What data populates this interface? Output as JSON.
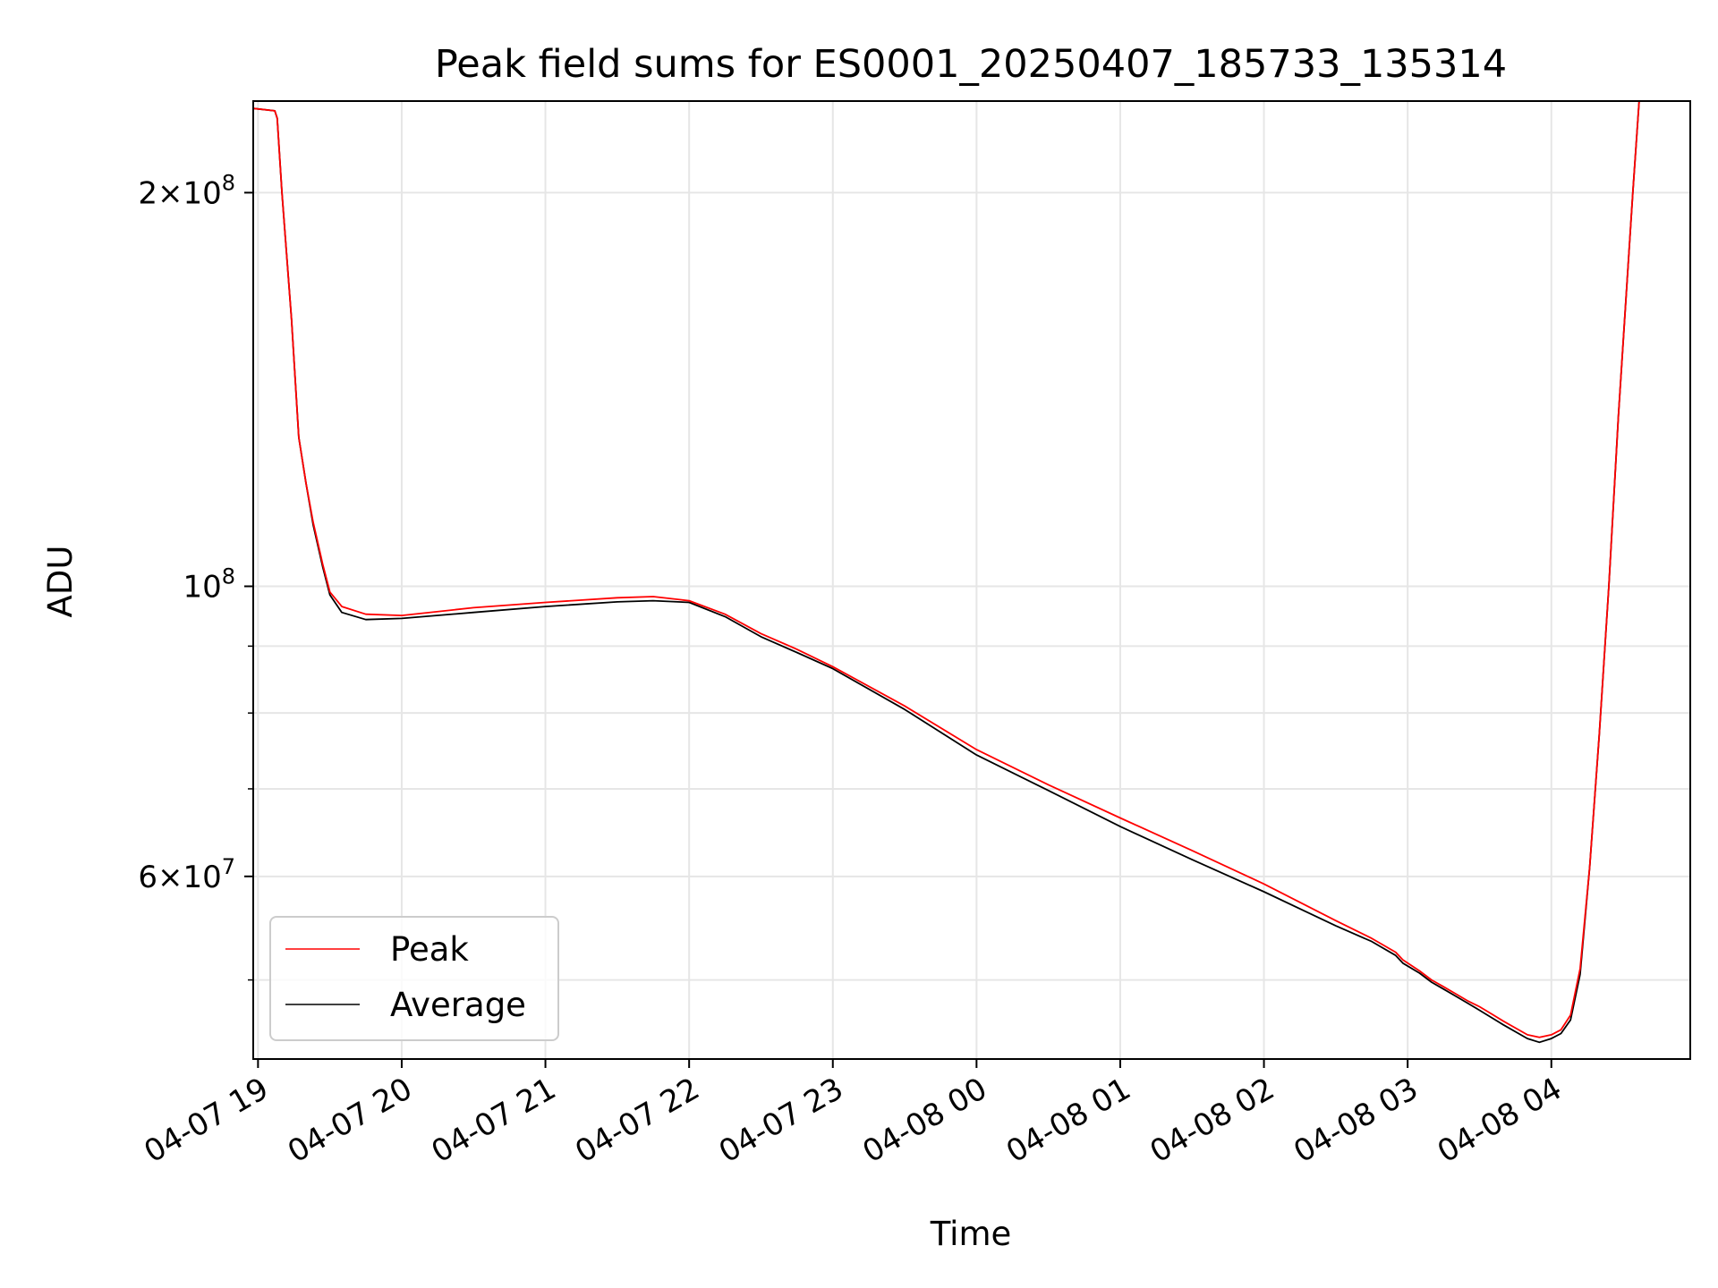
{
  "chart_data": {
    "type": "line",
    "title": "Peak field sums for ES0001_20250407_185733_135314",
    "xlabel": "Time",
    "ylabel": "ADU",
    "x_scale": "time",
    "y_scale": "log",
    "xlim": [
      "2025-04-07 18:58",
      "2025-04-08 04:58"
    ],
    "ylim": [
      43500000,
      235000000
    ],
    "x_ticks": [
      {
        "value": "2025-04-07 19:00",
        "label": "04-07 19"
      },
      {
        "value": "2025-04-07 20:00",
        "label": "04-07 20"
      },
      {
        "value": "2025-04-07 21:00",
        "label": "04-07 21"
      },
      {
        "value": "2025-04-07 22:00",
        "label": "04-07 22"
      },
      {
        "value": "2025-04-07 23:00",
        "label": "04-07 23"
      },
      {
        "value": "2025-04-08 00:00",
        "label": "04-08 00"
      },
      {
        "value": "2025-04-08 01:00",
        "label": "04-08 01"
      },
      {
        "value": "2025-04-08 02:00",
        "label": "04-08 02"
      },
      {
        "value": "2025-04-08 03:00",
        "label": "04-08 03"
      },
      {
        "value": "2025-04-08 04:00",
        "label": "04-08 04"
      }
    ],
    "y_major_ticks": [
      {
        "value": 100000000,
        "base": "10",
        "exp": "8",
        "coef": ""
      },
      {
        "value": 60000000,
        "base": "10",
        "exp": "7",
        "coef": "6"
      },
      {
        "value": 200000000,
        "base": "10",
        "exp": "8",
        "coef": "2"
      }
    ],
    "y_minor_ticks": [
      50000000,
      70000000,
      80000000,
      90000000
    ],
    "grid": true,
    "legend_position": "lower-left",
    "series": [
      {
        "name": "Peak",
        "color": "#ff0000",
        "x": [
          "2025-04-07 18:58",
          "2025-04-07 19:07",
          "2025-04-07 19:08",
          "2025-04-07 19:10",
          "2025-04-07 19:14",
          "2025-04-07 19:17",
          "2025-04-07 19:20",
          "2025-04-07 19:23",
          "2025-04-07 19:27",
          "2025-04-07 19:30",
          "2025-04-07 19:35",
          "2025-04-07 19:45",
          "2025-04-07 20:00",
          "2025-04-07 20:30",
          "2025-04-07 21:00",
          "2025-04-07 21:30",
          "2025-04-07 21:45",
          "2025-04-07 22:00",
          "2025-04-07 22:15",
          "2025-04-07 22:30",
          "2025-04-07 22:45",
          "2025-04-07 23:00",
          "2025-04-07 23:30",
          "2025-04-08 00:00",
          "2025-04-08 00:30",
          "2025-04-08 01:00",
          "2025-04-08 01:30",
          "2025-04-08 02:00",
          "2025-04-08 02:30",
          "2025-04-08 02:45",
          "2025-04-08 02:55",
          "2025-04-08 02:58",
          "2025-04-08 03:05",
          "2025-04-08 03:10",
          "2025-04-08 03:15",
          "2025-04-08 03:20",
          "2025-04-08 03:25",
          "2025-04-08 03:30",
          "2025-04-08 03:35",
          "2025-04-08 03:40",
          "2025-04-08 03:50",
          "2025-04-08 03:55",
          "2025-04-08 04:00",
          "2025-04-08 04:04",
          "2025-04-08 04:08",
          "2025-04-08 04:12",
          "2025-04-08 04:16",
          "2025-04-08 04:20",
          "2025-04-08 04:24",
          "2025-04-08 04:28",
          "2025-04-08 04:34",
          "2025-04-08 04:37"
        ],
        "values": [
          232000000,
          231000000,
          228000000,
          200000000,
          160000000,
          130000000,
          120000000,
          112000000,
          104000000,
          99000000,
          96500000,
          95200000,
          95000000,
          96300000,
          97200000,
          98000000,
          98200000,
          97500000,
          95200000,
          92000000,
          89500000,
          86800000,
          81000000,
          75000000,
          70500000,
          66500000,
          62800000,
          59200000,
          55500000,
          53800000,
          52500000,
          51800000,
          50800000,
          50000000,
          49400000,
          48800000,
          48200000,
          47700000,
          47100000,
          46500000,
          45400000,
          45200000,
          45400000,
          45800000,
          47000000,
          51000000,
          61000000,
          77000000,
          100000000,
          135000000,
          200000000,
          240000000
        ]
      },
      {
        "name": "Average",
        "color": "#000000",
        "x": [
          "2025-04-07 18:58",
          "2025-04-07 19:07",
          "2025-04-07 19:08",
          "2025-04-07 19:10",
          "2025-04-07 19:14",
          "2025-04-07 19:17",
          "2025-04-07 19:20",
          "2025-04-07 19:23",
          "2025-04-07 19:27",
          "2025-04-07 19:30",
          "2025-04-07 19:35",
          "2025-04-07 19:45",
          "2025-04-07 20:00",
          "2025-04-07 20:30",
          "2025-04-07 21:00",
          "2025-04-07 21:30",
          "2025-04-07 21:45",
          "2025-04-07 22:00",
          "2025-04-07 22:15",
          "2025-04-07 22:30",
          "2025-04-07 22:45",
          "2025-04-07 23:00",
          "2025-04-07 23:30",
          "2025-04-08 00:00",
          "2025-04-08 00:30",
          "2025-04-08 01:00",
          "2025-04-08 01:30",
          "2025-04-08 02:00",
          "2025-04-08 02:30",
          "2025-04-08 02:45",
          "2025-04-08 02:55",
          "2025-04-08 02:58",
          "2025-04-08 03:05",
          "2025-04-08 03:10",
          "2025-04-08 03:15",
          "2025-04-08 03:20",
          "2025-04-08 03:25",
          "2025-04-08 03:30",
          "2025-04-08 03:35",
          "2025-04-08 03:40",
          "2025-04-08 03:50",
          "2025-04-08 03:55",
          "2025-04-08 04:00",
          "2025-04-08 04:04",
          "2025-04-08 04:08",
          "2025-04-08 04:12",
          "2025-04-08 04:16",
          "2025-04-08 04:20",
          "2025-04-08 04:24",
          "2025-04-08 04:28",
          "2025-04-08 04:34",
          "2025-04-08 04:37"
        ],
        "values": [
          232000000,
          231000000,
          228000000,
          200000000,
          160000000,
          130000000,
          120000000,
          111500000,
          103500000,
          98500000,
          95500000,
          94300000,
          94500000,
          95500000,
          96500000,
          97300000,
          97500000,
          97200000,
          94800000,
          91500000,
          89000000,
          86500000,
          80500000,
          74300000,
          69800000,
          65500000,
          61800000,
          58400000,
          55000000,
          53500000,
          52200000,
          51500000,
          50600000,
          49800000,
          49200000,
          48600000,
          48000000,
          47400000,
          46800000,
          46200000,
          45100000,
          44800000,
          45100000,
          45500000,
          46600000,
          50500000,
          61000000,
          77000000,
          100000000,
          135000000,
          200000000,
          240000000
        ]
      }
    ]
  }
}
